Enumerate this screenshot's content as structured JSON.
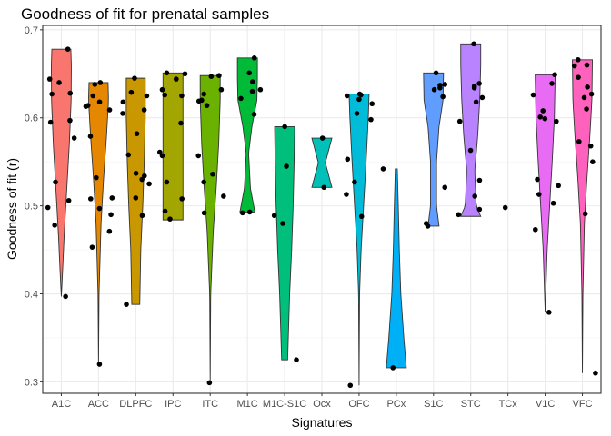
{
  "chart_data": {
    "type": "violin",
    "title": "Goodness of fit for prenatal samples",
    "xlabel": "Signatures",
    "ylabel": "Goodness of fit (r)",
    "ylim": [
      0.287,
      0.705
    ],
    "yticks": [
      0.3,
      0.4,
      0.5,
      0.6,
      0.7
    ],
    "ytick_labels": [
      "0.3",
      "0.4",
      "0.5",
      "0.6",
      "0.7"
    ],
    "grid": true,
    "legend": "none",
    "categories": [
      "A1C",
      "ACC",
      "DLPFC",
      "IPC",
      "ITC",
      "M1C",
      "M1C-S1C",
      "Ocx",
      "OFC",
      "PCx",
      "S1C",
      "STC",
      "TCx",
      "V1C",
      "VFC"
    ],
    "series": [
      {
        "category": "A1C",
        "color": "#F8766D",
        "violin": {
          "min": 0.397,
          "max": 0.678,
          "profile": [
            [
              0.397,
              0.0
            ],
            [
              0.42,
              0.1
            ],
            [
              0.47,
              0.3
            ],
            [
              0.52,
              0.55
            ],
            [
              0.57,
              0.8
            ],
            [
              0.62,
              0.98
            ],
            [
              0.66,
              1.0
            ],
            [
              0.678,
              0.95
            ]
          ]
        },
        "points": [
          0.678,
          0.644,
          0.64,
          0.628,
          0.627,
          0.597,
          0.595,
          0.577,
          0.527,
          0.506,
          0.498,
          0.478,
          0.397
        ]
      },
      {
        "category": "ACC",
        "color": "#E58700",
        "violin": {
          "min": 0.32,
          "max": 0.64,
          "profile": [
            [
              0.32,
              0.0
            ],
            [
              0.4,
              0.05
            ],
            [
              0.48,
              0.25
            ],
            [
              0.53,
              0.5
            ],
            [
              0.58,
              0.8
            ],
            [
              0.62,
              1.0
            ],
            [
              0.64,
              0.95
            ]
          ]
        },
        "points": [
          0.64,
          0.638,
          0.625,
          0.618,
          0.614,
          0.613,
          0.609,
          0.579,
          0.532,
          0.509,
          0.508,
          0.497,
          0.49,
          0.471,
          0.453,
          0.32
        ]
      },
      {
        "category": "DLPFC",
        "color": "#C99800",
        "violin": {
          "min": 0.388,
          "max": 0.645,
          "profile": [
            [
              0.388,
              0.4
            ],
            [
              0.45,
              0.5
            ],
            [
              0.5,
              0.7
            ],
            [
              0.55,
              0.85
            ],
            [
              0.6,
              0.95
            ],
            [
              0.645,
              0.95
            ]
          ]
        },
        "points": [
          0.645,
          0.629,
          0.625,
          0.618,
          0.609,
          0.605,
          0.582,
          0.558,
          0.537,
          0.534,
          0.53,
          0.525,
          0.509,
          0.489,
          0.388
        ]
      },
      {
        "category": "IPC",
        "color": "#A3A500",
        "violin": {
          "min": 0.484,
          "max": 0.651,
          "profile": [
            [
              0.484,
              1.0
            ],
            [
              0.651,
              1.0
            ]
          ]
        },
        "points": [
          0.651,
          0.65,
          0.644,
          0.632,
          0.626,
          0.625,
          0.594,
          0.561,
          0.557,
          0.527,
          0.508,
          0.494,
          0.485
        ]
      },
      {
        "category": "ITC",
        "color": "#6BB100",
        "violin": {
          "min": 0.299,
          "max": 0.648,
          "profile": [
            [
              0.299,
              0.0
            ],
            [
              0.4,
              0.05
            ],
            [
              0.47,
              0.3
            ],
            [
              0.52,
              0.6
            ],
            [
              0.57,
              0.85
            ],
            [
              0.62,
              1.0
            ],
            [
              0.648,
              1.0
            ]
          ]
        },
        "points": [
          0.648,
          0.647,
          0.632,
          0.627,
          0.62,
          0.619,
          0.614,
          0.557,
          0.536,
          0.527,
          0.511,
          0.492,
          0.299
        ]
      },
      {
        "category": "M1C",
        "color": "#00BA38",
        "violin": {
          "min": 0.493,
          "max": 0.668,
          "profile": [
            [
              0.493,
              0.75
            ],
            [
              0.52,
              0.3
            ],
            [
              0.56,
              0.12
            ],
            [
              0.59,
              0.45
            ],
            [
              0.62,
              0.95
            ],
            [
              0.645,
              1.0
            ],
            [
              0.668,
              1.0
            ]
          ]
        },
        "points": [
          0.668,
          0.651,
          0.641,
          0.632,
          0.63,
          0.622,
          0.604,
          0.493,
          0.492
        ]
      },
      {
        "category": "M1C-S1C",
        "color": "#00BF7D",
        "violin": {
          "min": 0.325,
          "max": 0.59,
          "profile": [
            [
              0.325,
              0.3
            ],
            [
              0.4,
              0.5
            ],
            [
              0.45,
              0.7
            ],
            [
              0.5,
              0.85
            ],
            [
              0.55,
              0.95
            ],
            [
              0.59,
              1.0
            ]
          ]
        },
        "points": [
          0.59,
          0.545,
          0.489,
          0.48,
          0.325
        ]
      },
      {
        "category": "Ocx",
        "color": "#00C0B8",
        "violin": {
          "min": 0.521,
          "max": 0.577,
          "profile": [
            [
              0.521,
              1.0
            ],
            [
              0.549,
              0.35
            ],
            [
              0.577,
              1.0
            ]
          ]
        },
        "points": [
          0.577,
          0.521
        ]
      },
      {
        "category": "OFC",
        "color": "#00BCD8",
        "violin": {
          "min": 0.296,
          "max": 0.627,
          "profile": [
            [
              0.296,
              0.0
            ],
            [
              0.4,
              0.05
            ],
            [
              0.45,
              0.2
            ],
            [
              0.5,
              0.45
            ],
            [
              0.55,
              0.7
            ],
            [
              0.6,
              0.92
            ],
            [
              0.627,
              1.0
            ]
          ]
        },
        "points": [
          0.627,
          0.626,
          0.625,
          0.621,
          0.616,
          0.605,
          0.598,
          0.553,
          0.527,
          0.513,
          0.488,
          0.296
        ]
      },
      {
        "category": "PCx",
        "color": "#00B0F6",
        "violin": {
          "min": 0.316,
          "max": 0.542,
          "profile": [
            [
              0.316,
              1.0
            ],
            [
              0.35,
              0.75
            ],
            [
              0.4,
              0.45
            ],
            [
              0.45,
              0.3
            ],
            [
              0.5,
              0.2
            ],
            [
              0.542,
              0.1
            ]
          ]
        },
        "points": [
          0.542,
          0.316
        ]
      },
      {
        "category": "S1C",
        "color": "#619CFF",
        "violin": {
          "min": 0.477,
          "max": 0.651,
          "profile": [
            [
              0.477,
              0.55
            ],
            [
              0.5,
              0.3
            ],
            [
              0.55,
              0.3
            ],
            [
              0.59,
              0.55
            ],
            [
              0.62,
              0.95
            ],
            [
              0.651,
              1.0
            ]
          ]
        },
        "points": [
          0.651,
          0.638,
          0.637,
          0.634,
          0.632,
          0.624,
          0.521,
          0.48,
          0.477
        ]
      },
      {
        "category": "STC",
        "color": "#B983FF",
        "violin": {
          "min": 0.488,
          "max": 0.684,
          "profile": [
            [
              0.488,
              1.0
            ],
            [
              0.5,
              0.55
            ],
            [
              0.54,
              0.4
            ],
            [
              0.58,
              0.7
            ],
            [
              0.62,
              0.9
            ],
            [
              0.66,
              1.0
            ],
            [
              0.684,
              1.0
            ]
          ]
        },
        "points": [
          0.684,
          0.639,
          0.636,
          0.634,
          0.623,
          0.618,
          0.596,
          0.563,
          0.529,
          0.511,
          0.496,
          0.49
        ]
      },
      {
        "category": "TCx",
        "color": "#E76BF3",
        "violin": null,
        "points": [
          0.498
        ]
      },
      {
        "category": "V1C",
        "color": "#E76BF3",
        "violin": {
          "min": 0.379,
          "max": 0.649,
          "profile": [
            [
              0.379,
              0.0
            ],
            [
              0.45,
              0.2
            ],
            [
              0.5,
              0.45
            ],
            [
              0.55,
              0.7
            ],
            [
              0.6,
              0.92
            ],
            [
              0.649,
              1.0
            ]
          ]
        },
        "points": [
          0.649,
          0.639,
          0.626,
          0.608,
          0.601,
          0.599,
          0.596,
          0.53,
          0.523,
          0.513,
          0.503,
          0.473,
          0.379
        ]
      },
      {
        "category": "VFC",
        "color": "#FF62BC",
        "violin": {
          "min": 0.31,
          "max": 0.666,
          "profile": [
            [
              0.31,
              0.0
            ],
            [
              0.4,
              0.05
            ],
            [
              0.48,
              0.2
            ],
            [
              0.53,
              0.45
            ],
            [
              0.58,
              0.75
            ],
            [
              0.62,
              0.95
            ],
            [
              0.666,
              1.0
            ]
          ]
        },
        "points": [
          0.666,
          0.66,
          0.659,
          0.646,
          0.635,
          0.627,
          0.623,
          0.61,
          0.573,
          0.568,
          0.55,
          0.491,
          0.31
        ]
      }
    ]
  }
}
